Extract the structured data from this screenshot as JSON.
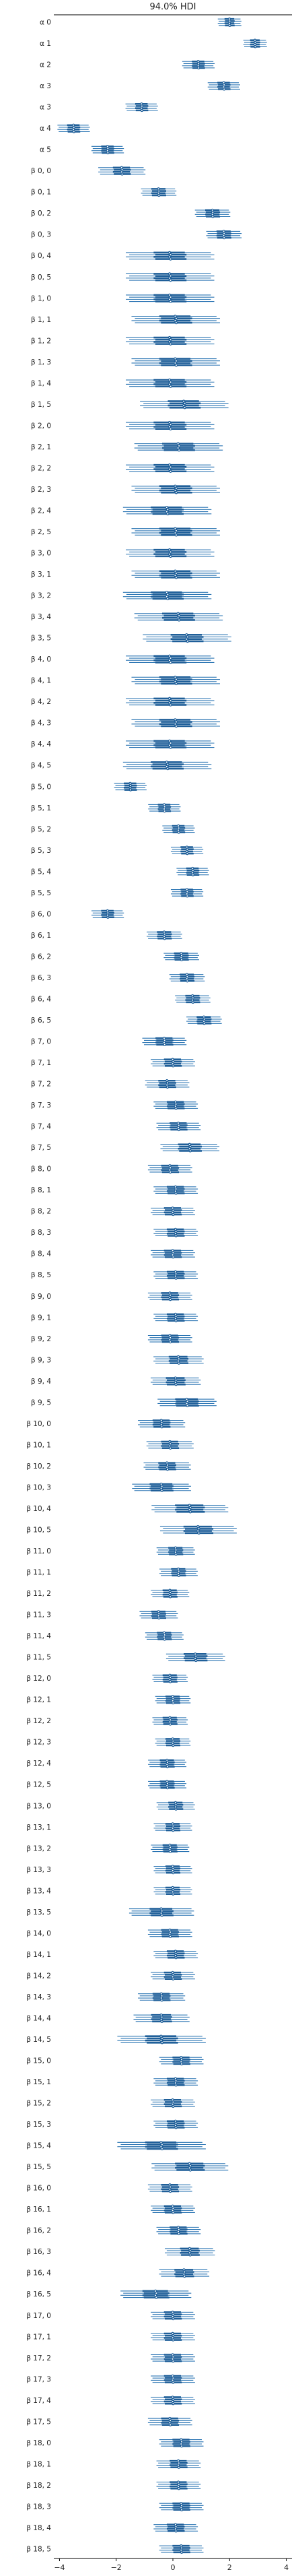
{
  "chart_data": {
    "type": "forest",
    "title": "94.0% HDI",
    "x_ticks": [
      -4,
      -2,
      0,
      2,
      4
    ],
    "x_range": [
      -4.2,
      4.2
    ],
    "colors": {
      "hdi": "#2a74b3",
      "iqr": "#1f5f99"
    },
    "chains": 4,
    "series": [
      {
        "label": "α 0",
        "center": 2.0,
        "hdi": 0.4,
        "iqr": 0.17
      },
      {
        "label": "α 1",
        "center": 2.9,
        "hdi": 0.4,
        "iqr": 0.17
      },
      {
        "label": "α 2",
        "center": 0.9,
        "hdi": 0.55,
        "iqr": 0.22
      },
      {
        "label": "α 3",
        "center": 1.8,
        "hdi": 0.55,
        "iqr": 0.22
      },
      {
        "label": "α 3",
        "center": -1.1,
        "hdi": 0.55,
        "iqr": 0.22
      },
      {
        "label": "α 4",
        "center": -3.5,
        "hdi": 0.55,
        "iqr": 0.22
      },
      {
        "label": "α 5",
        "center": -2.3,
        "hdi": 0.55,
        "iqr": 0.22
      },
      {
        "label": "β 0, 0",
        "center": -1.8,
        "hdi": 0.8,
        "iqr": 0.3
      },
      {
        "label": "β 0, 1",
        "center": -0.5,
        "hdi": 0.6,
        "iqr": 0.25
      },
      {
        "label": "β 0, 2",
        "center": 1.4,
        "hdi": 0.6,
        "iqr": 0.25
      },
      {
        "label": "β 0, 3",
        "center": 1.8,
        "hdi": 0.6,
        "iqr": 0.25
      },
      {
        "label": "β 0, 4",
        "center": -0.1,
        "hdi": 1.5,
        "iqr": 0.55
      },
      {
        "label": "β 0, 5",
        "center": -0.1,
        "hdi": 1.5,
        "iqr": 0.55
      },
      {
        "label": "β 1, 0",
        "center": -0.1,
        "hdi": 1.5,
        "iqr": 0.55
      },
      {
        "label": "β 1, 1",
        "center": 0.1,
        "hdi": 1.5,
        "iqr": 0.55
      },
      {
        "label": "β 1, 2",
        "center": -0.1,
        "hdi": 1.5,
        "iqr": 0.55
      },
      {
        "label": "β 1, 3",
        "center": 0.1,
        "hdi": 1.5,
        "iqr": 0.55
      },
      {
        "label": "β 1, 4",
        "center": -0.1,
        "hdi": 1.5,
        "iqr": 0.55
      },
      {
        "label": "β 1, 5",
        "center": 0.4,
        "hdi": 1.5,
        "iqr": 0.55
      },
      {
        "label": "β 2, 0",
        "center": -0.1,
        "hdi": 1.5,
        "iqr": 0.55
      },
      {
        "label": "β 2, 1",
        "center": 0.2,
        "hdi": 1.5,
        "iqr": 0.55
      },
      {
        "label": "β 2, 2",
        "center": -0.1,
        "hdi": 1.5,
        "iqr": 0.55
      },
      {
        "label": "β 2, 3",
        "center": 0.1,
        "hdi": 1.5,
        "iqr": 0.55
      },
      {
        "label": "β 2, 4",
        "center": -0.2,
        "hdi": 1.5,
        "iqr": 0.55
      },
      {
        "label": "β 2, 5",
        "center": 0.1,
        "hdi": 1.5,
        "iqr": 0.55
      },
      {
        "label": "β 3, 0",
        "center": -0.1,
        "hdi": 1.5,
        "iqr": 0.55
      },
      {
        "label": "β 3, 1",
        "center": 0.1,
        "hdi": 1.5,
        "iqr": 0.55
      },
      {
        "label": "β 3, 2",
        "center": -0.2,
        "hdi": 1.5,
        "iqr": 0.55
      },
      {
        "label": "β 3, 4",
        "center": 0.2,
        "hdi": 1.5,
        "iqr": 0.55
      },
      {
        "label": "β 3, 5",
        "center": 0.5,
        "hdi": 1.5,
        "iqr": 0.55
      },
      {
        "label": "β 4, 0",
        "center": -0.1,
        "hdi": 1.5,
        "iqr": 0.55
      },
      {
        "label": "β 4, 1",
        "center": 0.1,
        "hdi": 1.5,
        "iqr": 0.55
      },
      {
        "label": "β 4, 2",
        "center": -0.1,
        "hdi": 1.5,
        "iqr": 0.55
      },
      {
        "label": "β 4, 3",
        "center": 0.1,
        "hdi": 1.5,
        "iqr": 0.55
      },
      {
        "label": "β 4, 4",
        "center": -0.1,
        "hdi": 1.5,
        "iqr": 0.55
      },
      {
        "label": "β 4, 5",
        "center": -0.2,
        "hdi": 1.5,
        "iqr": 0.55
      },
      {
        "label": "β 5, 0",
        "center": -1.5,
        "hdi": 0.55,
        "iqr": 0.22
      },
      {
        "label": "β 5, 1",
        "center": -0.3,
        "hdi": 0.55,
        "iqr": 0.22
      },
      {
        "label": "β 5, 2",
        "center": 0.2,
        "hdi": 0.55,
        "iqr": 0.22
      },
      {
        "label": "β 5, 3",
        "center": 0.5,
        "hdi": 0.55,
        "iqr": 0.22
      },
      {
        "label": "β 5, 4",
        "center": 0.7,
        "hdi": 0.55,
        "iqr": 0.22
      },
      {
        "label": "β 5, 5",
        "center": 0.5,
        "hdi": 0.55,
        "iqr": 0.22
      },
      {
        "label": "β 6, 0",
        "center": -2.3,
        "hdi": 0.55,
        "iqr": 0.22
      },
      {
        "label": "β 6, 1",
        "center": -0.3,
        "hdi": 0.6,
        "iqr": 0.25
      },
      {
        "label": "β 6, 2",
        "center": 0.3,
        "hdi": 0.6,
        "iqr": 0.25
      },
      {
        "label": "β 6, 3",
        "center": 0.5,
        "hdi": 0.6,
        "iqr": 0.25
      },
      {
        "label": "β 6, 4",
        "center": 0.7,
        "hdi": 0.6,
        "iqr": 0.25
      },
      {
        "label": "β 6, 5",
        "center": 1.1,
        "hdi": 0.6,
        "iqr": 0.25
      },
      {
        "label": "β 7, 0",
        "center": -0.3,
        "hdi": 0.75,
        "iqr": 0.3
      },
      {
        "label": "β 7, 1",
        "center": 0.0,
        "hdi": 0.75,
        "iqr": 0.3
      },
      {
        "label": "β 7, 2",
        "center": -0.2,
        "hdi": 0.75,
        "iqr": 0.3
      },
      {
        "label": "β 7, 3",
        "center": 0.1,
        "hdi": 0.75,
        "iqr": 0.3
      },
      {
        "label": "β 7, 4",
        "center": 0.2,
        "hdi": 0.75,
        "iqr": 0.3
      },
      {
        "label": "β 7, 5",
        "center": 0.6,
        "hdi": 1.0,
        "iqr": 0.4
      },
      {
        "label": "β 8, 0",
        "center": -0.1,
        "hdi": 0.75,
        "iqr": 0.3
      },
      {
        "label": "β 8, 1",
        "center": 0.1,
        "hdi": 0.75,
        "iqr": 0.3
      },
      {
        "label": "β 8, 2",
        "center": 0.0,
        "hdi": 0.75,
        "iqr": 0.3
      },
      {
        "label": "β 8, 3",
        "center": 0.1,
        "hdi": 0.75,
        "iqr": 0.3
      },
      {
        "label": "β 8, 4",
        "center": 0.0,
        "hdi": 0.75,
        "iqr": 0.3
      },
      {
        "label": "β 8, 5",
        "center": 0.1,
        "hdi": 0.75,
        "iqr": 0.3
      },
      {
        "label": "β 9, 0",
        "center": -0.1,
        "hdi": 0.75,
        "iqr": 0.3
      },
      {
        "label": "β 9, 1",
        "center": 0.1,
        "hdi": 0.75,
        "iqr": 0.3
      },
      {
        "label": "β 9, 2",
        "center": -0.1,
        "hdi": 0.75,
        "iqr": 0.3
      },
      {
        "label": "β 9, 3",
        "center": 0.2,
        "hdi": 0.85,
        "iqr": 0.33
      },
      {
        "label": "β 9, 4",
        "center": 0.1,
        "hdi": 0.85,
        "iqr": 0.33
      },
      {
        "label": "β 9, 5",
        "center": 0.5,
        "hdi": 1.0,
        "iqr": 0.4
      },
      {
        "label": "β 10, 0",
        "center": -0.4,
        "hdi": 0.8,
        "iqr": 0.3
      },
      {
        "label": "β 10, 1",
        "center": -0.1,
        "hdi": 0.8,
        "iqr": 0.3
      },
      {
        "label": "β 10, 2",
        "center": -0.2,
        "hdi": 0.8,
        "iqr": 0.3
      },
      {
        "label": "β 10, 3",
        "center": -0.4,
        "hdi": 1.0,
        "iqr": 0.4
      },
      {
        "label": "β 10, 4",
        "center": 0.6,
        "hdi": 1.3,
        "iqr": 0.5
      },
      {
        "label": "β 10, 5",
        "center": 0.9,
        "hdi": 1.3,
        "iqr": 0.5
      },
      {
        "label": "β 11, 0",
        "center": 0.1,
        "hdi": 0.65,
        "iqr": 0.25
      },
      {
        "label": "β 11, 1",
        "center": 0.2,
        "hdi": 0.65,
        "iqr": 0.25
      },
      {
        "label": "β 11, 2",
        "center": -0.1,
        "hdi": 0.65,
        "iqr": 0.25
      },
      {
        "label": "β 11, 3",
        "center": -0.5,
        "hdi": 0.65,
        "iqr": 0.25
      },
      {
        "label": "β 11, 4",
        "center": -0.3,
        "hdi": 0.65,
        "iqr": 0.25
      },
      {
        "label": "β 11, 5",
        "center": 0.8,
        "hdi": 1.0,
        "iqr": 0.4
      },
      {
        "label": "β 12, 0",
        "center": -0.1,
        "hdi": 0.6,
        "iqr": 0.25
      },
      {
        "label": "β 12, 1",
        "center": 0.0,
        "hdi": 0.6,
        "iqr": 0.25
      },
      {
        "label": "β 12, 2",
        "center": -0.1,
        "hdi": 0.6,
        "iqr": 0.25
      },
      {
        "label": "β 12, 3",
        "center": 0.0,
        "hdi": 0.6,
        "iqr": 0.25
      },
      {
        "label": "β 12, 4",
        "center": -0.2,
        "hdi": 0.65,
        "iqr": 0.25
      },
      {
        "label": "β 12, 5",
        "center": -0.2,
        "hdi": 0.65,
        "iqr": 0.25
      },
      {
        "label": "β 13, 0",
        "center": 0.1,
        "hdi": 0.65,
        "iqr": 0.25
      },
      {
        "label": "β 13, 1",
        "center": 0.0,
        "hdi": 0.65,
        "iqr": 0.25
      },
      {
        "label": "β 13, 2",
        "center": -0.1,
        "hdi": 0.65,
        "iqr": 0.25
      },
      {
        "label": "β 13, 3",
        "center": 0.0,
        "hdi": 0.65,
        "iqr": 0.25
      },
      {
        "label": "β 13, 4",
        "center": 0.0,
        "hdi": 0.65,
        "iqr": 0.25
      },
      {
        "label": "β 13, 5",
        "center": -0.4,
        "hdi": 1.1,
        "iqr": 0.4
      },
      {
        "label": "β 14, 0",
        "center": -0.1,
        "hdi": 0.75,
        "iqr": 0.3
      },
      {
        "label": "β 14, 1",
        "center": 0.1,
        "hdi": 0.75,
        "iqr": 0.3
      },
      {
        "label": "β 14, 2",
        "center": 0.0,
        "hdi": 0.75,
        "iqr": 0.3
      },
      {
        "label": "β 14, 3",
        "center": -0.4,
        "hdi": 0.8,
        "iqr": 0.3
      },
      {
        "label": "β 14, 4",
        "center": -0.4,
        "hdi": 0.95,
        "iqr": 0.35
      },
      {
        "label": "β 14, 5",
        "center": -0.4,
        "hdi": 1.5,
        "iqr": 0.55
      },
      {
        "label": "β 15, 0",
        "center": 0.3,
        "hdi": 0.75,
        "iqr": 0.3
      },
      {
        "label": "β 15, 1",
        "center": 0.1,
        "hdi": 0.75,
        "iqr": 0.3
      },
      {
        "label": "β 15, 2",
        "center": 0.0,
        "hdi": 0.75,
        "iqr": 0.3
      },
      {
        "label": "β 15, 3",
        "center": 0.1,
        "hdi": 0.75,
        "iqr": 0.3
      },
      {
        "label": "β 15, 4",
        "center": -0.4,
        "hdi": 1.5,
        "iqr": 0.55
      },
      {
        "label": "β 15, 5",
        "center": 0.6,
        "hdi": 1.3,
        "iqr": 0.5
      },
      {
        "label": "β 16, 0",
        "center": -0.1,
        "hdi": 0.75,
        "iqr": 0.3
      },
      {
        "label": "β 16, 1",
        "center": 0.0,
        "hdi": 0.75,
        "iqr": 0.3
      },
      {
        "label": "β 16, 2",
        "center": 0.2,
        "hdi": 0.75,
        "iqr": 0.3
      },
      {
        "label": "β 16, 3",
        "center": 0.6,
        "hdi": 0.85,
        "iqr": 0.33
      },
      {
        "label": "β 16, 4",
        "center": 0.4,
        "hdi": 0.85,
        "iqr": 0.33
      },
      {
        "label": "β 16, 5",
        "center": -0.6,
        "hdi": 1.2,
        "iqr": 0.45
      },
      {
        "label": "β 17, 0",
        "center": 0.0,
        "hdi": 0.75,
        "iqr": 0.3
      },
      {
        "label": "β 17, 1",
        "center": 0.0,
        "hdi": 0.75,
        "iqr": 0.3
      },
      {
        "label": "β 17, 2",
        "center": 0.0,
        "hdi": 0.75,
        "iqr": 0.3
      },
      {
        "label": "β 17, 3",
        "center": 0.0,
        "hdi": 0.75,
        "iqr": 0.3
      },
      {
        "label": "β 17, 4",
        "center": 0.0,
        "hdi": 0.75,
        "iqr": 0.3
      },
      {
        "label": "β 17, 5",
        "center": -0.1,
        "hdi": 0.75,
        "iqr": 0.3
      },
      {
        "label": "β 18, 0",
        "center": 0.3,
        "hdi": 0.75,
        "iqr": 0.3
      },
      {
        "label": "β 18, 1",
        "center": 0.2,
        "hdi": 0.75,
        "iqr": 0.3
      },
      {
        "label": "β 18, 2",
        "center": 0.2,
        "hdi": 0.75,
        "iqr": 0.3
      },
      {
        "label": "β 18, 3",
        "center": 0.3,
        "hdi": 0.75,
        "iqr": 0.3
      },
      {
        "label": "β 18, 4",
        "center": 0.1,
        "hdi": 0.75,
        "iqr": 0.3
      },
      {
        "label": "β 18, 5",
        "center": 0.3,
        "hdi": 0.75,
        "iqr": 0.3
      }
    ]
  }
}
